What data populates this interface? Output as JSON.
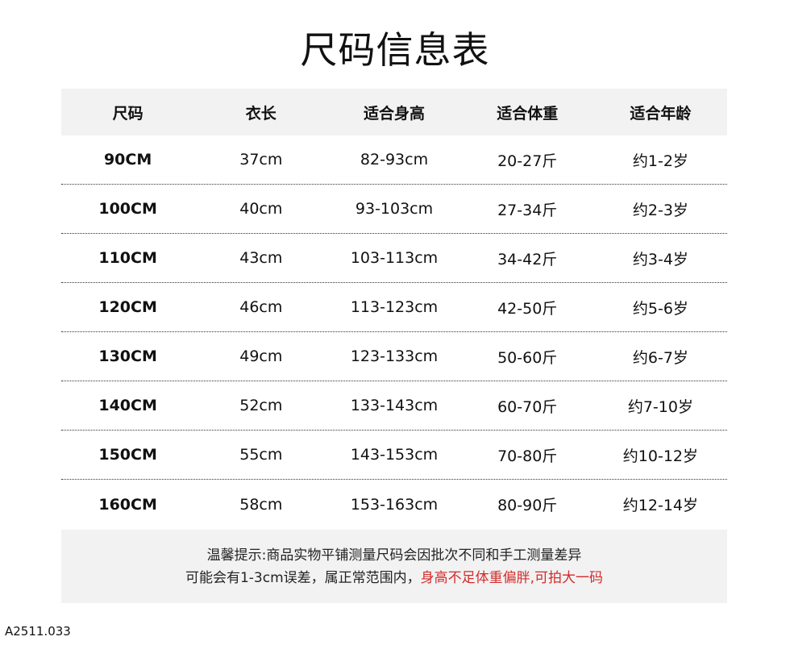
{
  "title": "尺码信息表",
  "table": {
    "headers": [
      "尺码",
      "衣长",
      "适合身高",
      "适合体重",
      "适合年龄"
    ],
    "rows": [
      [
        "90CM",
        "37cm",
        "82-93cm",
        "20-27斤",
        "约1-2岁"
      ],
      [
        "100CM",
        "40cm",
        "93-103cm",
        "27-34斤",
        "约2-3岁"
      ],
      [
        "110CM",
        "43cm",
        "103-113cm",
        "34-42斤",
        "约3-4岁"
      ],
      [
        "120CM",
        "46cm",
        "113-123cm",
        "42-50斤",
        "约5-6岁"
      ],
      [
        "130CM",
        "49cm",
        "123-133cm",
        "50-60斤",
        "约6-7岁"
      ],
      [
        "140CM",
        "52cm",
        "133-143cm",
        "60-70斤",
        "约7-10岁"
      ],
      [
        "150CM",
        "55cm",
        "143-153cm",
        "70-80斤",
        "约10-12岁"
      ],
      [
        "160CM",
        "58cm",
        "153-163cm",
        "80-90斤",
        "约12-14岁"
      ]
    ]
  },
  "note": {
    "line1": "温馨提示:商品实物平铺测量尺码会因批次不同和手工测量差异",
    "line2_black": "可能会有1-3cm误差，属正常范围内，",
    "line2_red": "身高不足体重偏胖,可拍大一码",
    "highlight_color": "#d42b2b"
  },
  "product_code": "A2511.033"
}
